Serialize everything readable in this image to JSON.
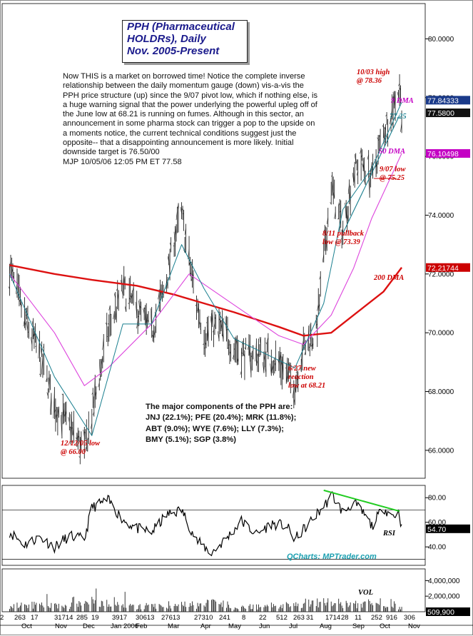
{
  "title": {
    "line1": "PPH (Pharmaceutical",
    "line2": "HOLDRs), Daily",
    "line3": "Nov. 2005-Present"
  },
  "commentary": "Now THIS is a market on borrowed time! Notice the complete inverse relationship between the daily momentum gauge (down) vis-a-vis the PPH price structure (up) since the 9/07 pivot low, which if nothing else, is a huge warning signal that the power underlying the powerful upleg off of the June low at 68.21 is running on fumes. Although in this sector, an announcement in some pharma stock can trigger a pop to the upside on a moments notice, the current technical conditions suggest just the opposite-- that a disappointing announcement is more likely. Initial downside target is 76.50/00",
  "signature": "MJP  10/05/06  12:05 PM ET  77.58",
  "components": {
    "heading": "The major components of the PPH are:",
    "line1": "JNJ (22.1%); PFE (20.4%); MRK (11.8%);",
    "line2": "ABT (9.0%); WYE (7.6%); LLY (7.3%);",
    "line3": "BMY (5.1%); SGP (3.8%)"
  },
  "source": "QCharts: MPTrader.com",
  "colors": {
    "price": "#222222",
    "dma9": "#1a7f8f",
    "dma50": "#dd44dd",
    "dma200": "#dd1111",
    "annotation_red": "#cc0000",
    "annotation_magenta": "#c400c4",
    "annotation_teal": "#1a7f8f",
    "title_blue": "#1a1a8c",
    "rsi_trend": "#22cc22",
    "badge_blue": "#1a3a8a"
  },
  "chart_data": [
    {
      "type": "line",
      "panel": "price",
      "y_axis": {
        "ticks": [
          "80.0000",
          "78.0000",
          "76.0000",
          "74.0000",
          "72.0000",
          "70.0000",
          "68.0000",
          "66.0000"
        ],
        "tick_values": [
          80,
          78,
          76,
          74,
          72,
          70,
          68,
          66
        ],
        "ylim": [
          65.05,
          81.2
        ]
      },
      "x_axis": {
        "labels": [
          "2",
          "263",
          "17",
          "31714",
          "285",
          "19",
          "3917",
          "30613",
          "27613",
          "27310",
          "241",
          "8",
          "22",
          "512",
          "263",
          "31",
          "1714",
          "28",
          "11",
          "252",
          "916",
          "306"
        ],
        "months": [
          "Oct",
          "Nov",
          "Dec",
          "Jan 2006",
          "Feb",
          "Mar",
          "Apr",
          "May",
          "Jun",
          "Jul",
          "Aug",
          "Sep",
          "Oct",
          "Nov"
        ]
      },
      "series": [
        {
          "name": "PPH",
          "x": [
            "2005-10-03",
            "2005-10-17",
            "2005-10-31",
            "2005-11-14",
            "2005-11-28",
            "2005-12-12",
            "2005-12-19",
            "2006-01-03",
            "2006-01-17",
            "2006-01-30",
            "2006-02-13",
            "2006-02-27",
            "2006-03-06",
            "2006-03-13",
            "2006-03-20",
            "2006-03-27",
            "2006-04-03",
            "2006-04-17",
            "2006-05-01",
            "2006-05-15",
            "2006-05-30",
            "2006-06-12",
            "2006-06-27",
            "2006-07-05",
            "2006-07-17",
            "2006-07-24",
            "2006-07-31",
            "2006-08-11",
            "2006-08-21",
            "2006-08-28",
            "2006-09-07",
            "2006-09-18",
            "2006-09-25",
            "2006-10-03",
            "2006-10-05"
          ],
          "values": [
            72.2,
            70.5,
            69.3,
            67.5,
            66.8,
            66.0,
            67.2,
            70.0,
            71.5,
            70.8,
            70.0,
            71.8,
            73.2,
            74.0,
            72.5,
            71.0,
            70.0,
            70.2,
            69.5,
            69.2,
            69.3,
            69.0,
            68.21,
            69.5,
            70.0,
            72.5,
            75.0,
            73.39,
            75.5,
            75.8,
            75.25,
            76.8,
            77.5,
            78.36,
            77.58
          ]
        },
        {
          "name": "9 DMA",
          "x": [
            "2005-10-03",
            "2005-11-14",
            "2005-12-19",
            "2006-01-17",
            "2006-02-13",
            "2006-03-13",
            "2006-04-03",
            "2006-05-01",
            "2006-06-27",
            "2006-07-24",
            "2006-08-11",
            "2006-09-07",
            "2006-10-05"
          ],
          "values": [
            72.0,
            68.5,
            66.5,
            70.3,
            70.3,
            73.0,
            71.5,
            69.8,
            68.8,
            71.0,
            74.2,
            75.6,
            77.84
          ]
        },
        {
          "name": "50 DMA",
          "x": [
            "2005-10-03",
            "2005-11-14",
            "2005-12-12",
            "2006-01-03",
            "2006-02-13",
            "2006-03-20",
            "2006-04-17",
            "2006-05-15",
            "2006-06-12",
            "2006-07-05",
            "2006-07-31",
            "2006-08-21",
            "2006-09-07",
            "2006-10-05"
          ],
          "values": [
            72.0,
            70.0,
            68.2,
            68.8,
            70.3,
            72.0,
            71.3,
            70.6,
            69.9,
            69.6,
            70.6,
            72.2,
            73.9,
            76.1
          ]
        },
        {
          "name": "200 DMA",
          "x": [
            "2005-10-03",
            "2005-11-14",
            "2005-12-19",
            "2006-01-30",
            "2006-03-06",
            "2006-04-03",
            "2006-05-01",
            "2006-06-12",
            "2006-07-05",
            "2006-07-31",
            "2006-08-21",
            "2006-09-18",
            "2006-10-05"
          ],
          "values": [
            72.3,
            72.0,
            71.8,
            71.6,
            71.3,
            71.0,
            70.7,
            70.2,
            69.9,
            70.0,
            70.6,
            71.4,
            72.22
          ]
        }
      ],
      "trendline": {
        "x": [
          "2006-08-11",
          "2006-10-03"
        ],
        "values": [
          73.39,
          77.4
        ]
      },
      "badges": [
        {
          "label": "77.84333",
          "value": 77.84,
          "color": "#1a3a8a"
        },
        {
          "label": "77.5800",
          "value": 77.58,
          "color": "#111111"
        },
        {
          "label": "76.10498",
          "value": 76.1,
          "color": "#c400c4"
        },
        {
          "label": "72.21744",
          "value": 72.22,
          "color": "#cc0000"
        }
      ],
      "annotations": [
        {
          "text": [
            "10/03 high",
            "@ 78.36"
          ],
          "color": "#cc0000"
        },
        {
          "text": [
            "9 DMA"
          ],
          "color": "#c400c4"
        },
        {
          "text": [
            "77.25"
          ],
          "color": "#1a7f8f"
        },
        {
          "text": [
            "50 DMA"
          ],
          "color": "#c400c4"
        },
        {
          "text": [
            "9/07 low",
            "@ 75.25"
          ],
          "color": "#cc0000"
        },
        {
          "text": [
            "8/11 pullback",
            "low @ 73.39"
          ],
          "color": "#cc0000"
        },
        {
          "text": [
            "200 DMA"
          ],
          "color": "#cc0000"
        },
        {
          "text": [
            "6/27 new",
            "reaction",
            "low at 68.21"
          ],
          "color": "#cc0000"
        },
        {
          "text": [
            "12/12/05 low",
            "@ 66.00"
          ],
          "color": "#cc0000"
        }
      ]
    },
    {
      "type": "line",
      "panel": "rsi",
      "y_axis": {
        "ticks": [
          "80.00",
          "60.00",
          "40.00"
        ],
        "tick_values": [
          80,
          60,
          40
        ],
        "ylim": [
          25,
          90
        ]
      },
      "series": [
        {
          "name": "RSI",
          "x": [
            "2005-10-03",
            "2005-10-17",
            "2005-10-31",
            "2005-11-14",
            "2005-11-28",
            "2005-12-12",
            "2005-12-19",
            "2006-01-03",
            "2006-01-17",
            "2006-01-30",
            "2006-02-13",
            "2006-02-27",
            "2006-03-13",
            "2006-03-27",
            "2006-04-10",
            "2006-04-24",
            "2006-05-08",
            "2006-05-22",
            "2006-06-05",
            "2006-06-19",
            "2006-06-27",
            "2006-07-10",
            "2006-07-24",
            "2006-08-01",
            "2006-08-11",
            "2006-08-21",
            "2006-09-01",
            "2006-09-07",
            "2006-09-18",
            "2006-09-25",
            "2006-10-03",
            "2006-10-05"
          ],
          "values": [
            52,
            42,
            48,
            40,
            49,
            46,
            72,
            78,
            62,
            55,
            52,
            66,
            70,
            45,
            35,
            47,
            61,
            50,
            59,
            57,
            46,
            59,
            73,
            82,
            68,
            76,
            65,
            57,
            72,
            66,
            67,
            54.7
          ]
        }
      ],
      "levels": [
        70,
        30
      ],
      "trendline": {
        "x": [
          "2006-07-24",
          "2006-10-03"
        ],
        "values": [
          86,
          69
        ]
      },
      "label": "RSI",
      "badge": {
        "label": "54.70"
      }
    },
    {
      "type": "bar",
      "panel": "volume",
      "y_axis": {
        "ticks": [
          "4,000,000",
          "2,000,000"
        ],
        "tick_values": [
          4000000,
          2000000
        ],
        "ylim": [
          0,
          5500000
        ]
      },
      "label": "VOL",
      "badge": {
        "label": "509,900"
      },
      "series": [
        {
          "name": "VOL",
          "x": [
            "2005-10",
            "2005-11",
            "2005-12",
            "2006-01",
            "2006-02",
            "2006-03",
            "2006-04",
            "2006-05",
            "2006-06",
            "2006-07",
            "2006-08",
            "2006-09",
            "2006-10"
          ],
          "values": [
            900000,
            800000,
            1300000,
            700000,
            750000,
            900000,
            1100000,
            650000,
            850000,
            1150000,
            950000,
            1200000,
            509900
          ]
        }
      ]
    }
  ]
}
